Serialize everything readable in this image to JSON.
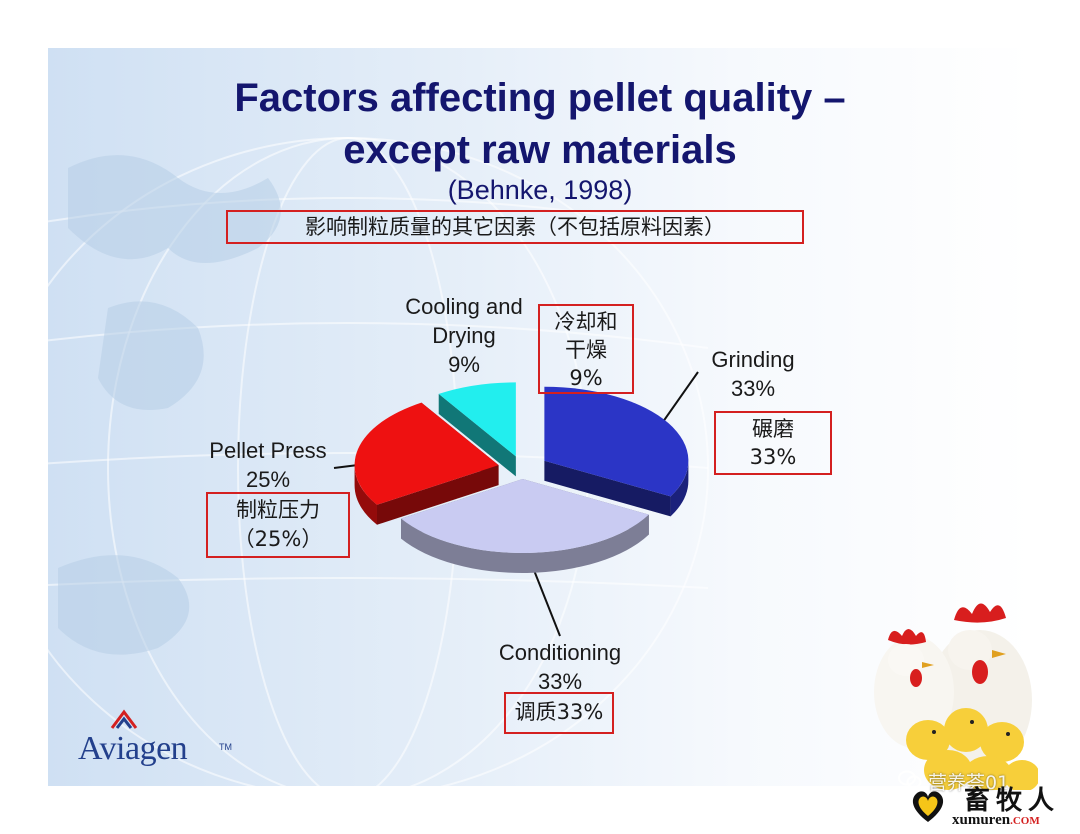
{
  "slide": {
    "title_line1": "Factors affecting pellet quality –",
    "title_line2": "except raw materials",
    "subtitle": "(Behnke, 1998)",
    "title_cn": "影响制粒质量的其它因素（不包括原料因素）"
  },
  "chart_data": {
    "type": "pie",
    "categories": [
      "Grinding",
      "Conditioning",
      "Pellet Press",
      "Cooling and Drying"
    ],
    "values": [
      33,
      33,
      25,
      9
    ],
    "unit": "%",
    "labels": [
      {
        "name_lines": [
          "Grinding"
        ],
        "value": "33%",
        "cn_lines": [
          "碾磨",
          "33%"
        ],
        "color": "#2b35c6"
      },
      {
        "name_lines": [
          "Conditioning"
        ],
        "value": "33%",
        "cn_lines": [
          "调质33%"
        ],
        "color": "#c9cbf2"
      },
      {
        "name_lines": [
          "Pellet Press"
        ],
        "value": "25%",
        "cn_lines": [
          "制粒压力",
          "（25%）"
        ],
        "color": "#ee1111"
      },
      {
        "name_lines": [
          "Cooling and",
          "Drying"
        ],
        "value": "9%",
        "cn_lines": [
          "冷却和",
          "干燥",
          "9%"
        ],
        "color": "#22eeee"
      }
    ]
  },
  "branding": {
    "logo": "Aviagen",
    "logo_tm": "TM",
    "watermark": "营养荟01",
    "site_cn": "畜牧人",
    "site_url": "xumuren",
    "site_tld": ".COM"
  }
}
